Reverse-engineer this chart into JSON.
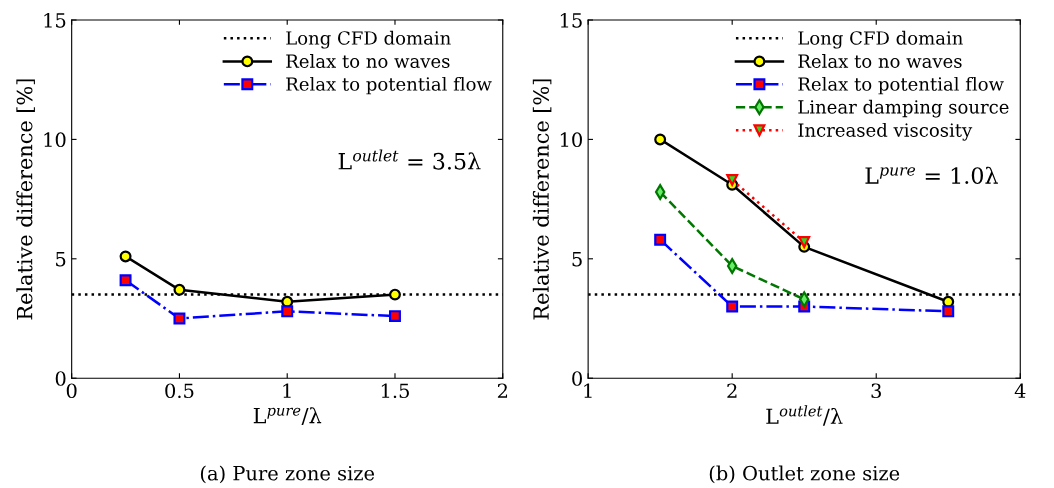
{
  "chart_data": [
    {
      "type": "line",
      "x": [
        0.25,
        0.5,
        1,
        1.5
      ],
      "xlabel": "L$^{pure}$/λ",
      "ylabel": "Relative difference [%]",
      "xlim": [
        0,
        2
      ],
      "xticks": [
        0,
        0.5,
        1,
        1.5,
        2
      ],
      "ylim": [
        0,
        15
      ],
      "yticks": [
        0,
        5,
        10,
        15
      ],
      "series": [
        {
          "name": "Relax to no waves",
          "color": "#000000",
          "marker": "circle",
          "line_style": "solid",
          "values": [
            5.1,
            3.7,
            3.2,
            3.5
          ]
        },
        {
          "name": "Relax to potential flow",
          "color": "#0000ff",
          "marker": "square",
          "line_style": "dashdot",
          "values": [
            4.1,
            2.5,
            2.8,
            2.6
          ]
        }
      ],
      "ref_lines": [
        {
          "axis": "y",
          "value": 3.5,
          "label": "Long CFD domain",
          "color": "#000000",
          "line_style": "dotted"
        }
      ],
      "annotations": [
        "L$^{outlet}$ = 3.5λ",
        "(a) Pure zone size"
      ],
      "legend": "top right",
      "grid": false
    },
    {
      "type": "line",
      "x": [
        1.5,
        2,
        2.5,
        3.5
      ],
      "xlabel": "L$^{outlet}$/λ",
      "ylabel": "Relative difference [%]",
      "xlim": [
        1,
        4
      ],
      "xticks": [
        1,
        2,
        3,
        4
      ],
      "ylim": [
        0,
        15
      ],
      "yticks": [
        0,
        5,
        10,
        15
      ],
      "series": [
        {
          "name": "Relax to no waves",
          "color": "#000000",
          "marker": "circle",
          "line_style": "solid",
          "values": [
            10,
            8.1,
            5.5,
            3.2
          ]
        },
        {
          "name": "Relax to potential flow",
          "color": "#0000ff",
          "marker": "square",
          "line_style": "dashdot",
          "values": [
            5.8,
            3.0,
            3.0,
            2.8
          ]
        },
        {
          "name": "Linear damping source",
          "color": "#007700",
          "marker": "diamond",
          "line_style": "dashed",
          "x": [
            1.5,
            2,
            2.5
          ],
          "values": [
            7.8,
            4.7,
            3.3
          ]
        },
        {
          "name": "Increased viscosity",
          "color": "#ff0000",
          "marker": "triangle",
          "line_style": "dotted",
          "x": [
            2,
            2.5
          ],
          "values": [
            8.3,
            5.7
          ]
        }
      ],
      "ref_lines": [
        {
          "axis": "y",
          "value": 3.5,
          "label": "Long CFD domain",
          "color": "#000000",
          "line_style": "dotted"
        }
      ],
      "annotations": [
        "L$^{pure}$ = 1.0λ",
        "(b) Outlet zone size"
      ],
      "legend": "top right",
      "grid": false
    }
  ]
}
